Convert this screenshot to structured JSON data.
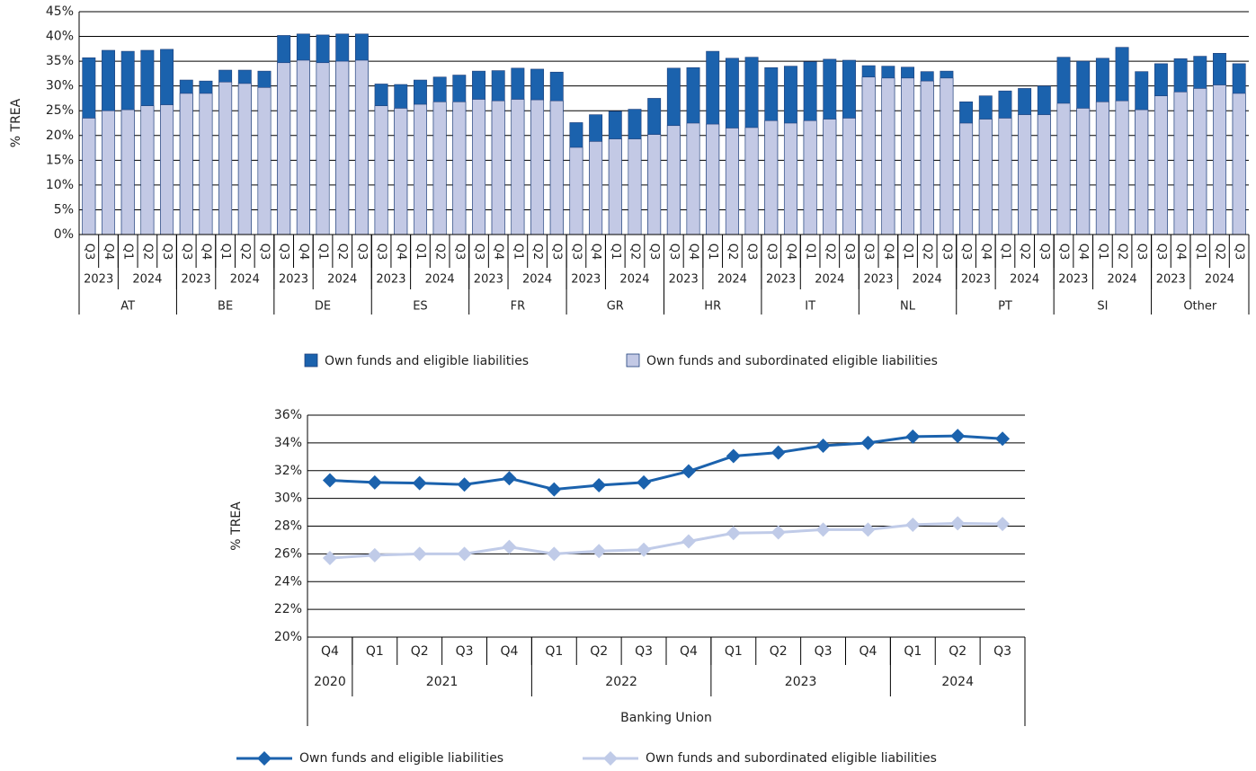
{
  "chart_data": [
    {
      "type": "bar",
      "overlap": true,
      "ylabel": "% TREA",
      "groups": [
        {
          "name": "AT",
          "years": [
            {
              "year": "2023",
              "quarters": [
                "Q3",
                "Q4"
              ]
            },
            {
              "year": "2024",
              "quarters": [
                "Q1",
                "Q2",
                "Q3"
              ]
            }
          ]
        },
        {
          "name": "BE",
          "years": [
            {
              "year": "2023",
              "quarters": [
                "Q3",
                "Q4"
              ]
            },
            {
              "year": "2024",
              "quarters": [
                "Q1",
                "Q2",
                "Q3"
              ]
            }
          ]
        },
        {
          "name": "DE",
          "years": [
            {
              "year": "2023",
              "quarters": [
                "Q3",
                "Q4"
              ]
            },
            {
              "year": "2024",
              "quarters": [
                "Q1",
                "Q2",
                "Q3"
              ]
            }
          ]
        },
        {
          "name": "ES",
          "years": [
            {
              "year": "2023",
              "quarters": [
                "Q3",
                "Q4"
              ]
            },
            {
              "year": "2024",
              "quarters": [
                "Q1",
                "Q2",
                "Q3"
              ]
            }
          ]
        },
        {
          "name": "FR",
          "years": [
            {
              "year": "2023",
              "quarters": [
                "Q3",
                "Q4"
              ]
            },
            {
              "year": "2024",
              "quarters": [
                "Q1",
                "Q2",
                "Q3"
              ]
            }
          ]
        },
        {
          "name": "GR",
          "years": [
            {
              "year": "2023",
              "quarters": [
                "Q3",
                "Q4"
              ]
            },
            {
              "year": "2024",
              "quarters": [
                "Q1",
                "Q2",
                "Q3"
              ]
            }
          ]
        },
        {
          "name": "HR",
          "years": [
            {
              "year": "2023",
              "quarters": [
                "Q3",
                "Q4"
              ]
            },
            {
              "year": "2024",
              "quarters": [
                "Q1",
                "Q2",
                "Q3"
              ]
            }
          ]
        },
        {
          "name": "IT",
          "years": [
            {
              "year": "2023",
              "quarters": [
                "Q3",
                "Q4"
              ]
            },
            {
              "year": "2024",
              "quarters": [
                "Q1",
                "Q2",
                "Q3"
              ]
            }
          ]
        },
        {
          "name": "NL",
          "years": [
            {
              "year": "2023",
              "quarters": [
                "Q3",
                "Q4"
              ]
            },
            {
              "year": "2024",
              "quarters": [
                "Q1",
                "Q2",
                "Q3"
              ]
            }
          ]
        },
        {
          "name": "PT",
          "years": [
            {
              "year": "2023",
              "quarters": [
                "Q3",
                "Q4"
              ]
            },
            {
              "year": "2024",
              "quarters": [
                "Q1",
                "Q2",
                "Q3"
              ]
            }
          ]
        },
        {
          "name": "SI",
          "years": [
            {
              "year": "2023",
              "quarters": [
                "Q3",
                "Q4"
              ]
            },
            {
              "year": "2024",
              "quarters": [
                "Q1",
                "Q2",
                "Q3"
              ]
            }
          ]
        },
        {
          "name": "Other",
          "years": [
            {
              "year": "2023",
              "quarters": [
                "Q3",
                "Q4"
              ]
            },
            {
              "year": "2024",
              "quarters": [
                "Q1",
                "Q2",
                "Q3"
              ]
            }
          ]
        }
      ],
      "series": [
        {
          "name": "Own funds and eligible liabilities",
          "color": "#1b62ad",
          "values": [
            35.7,
            37.2,
            37.0,
            37.2,
            37.4,
            31.2,
            31.0,
            33.2,
            33.2,
            33.0,
            40.2,
            40.5,
            40.3,
            40.5,
            40.5,
            30.4,
            30.3,
            31.2,
            31.8,
            32.2,
            33.0,
            33.1,
            33.6,
            33.4,
            32.8,
            22.6,
            24.2,
            24.9,
            25.3,
            27.5,
            33.6,
            33.7,
            37.0,
            35.6,
            35.8,
            33.7,
            34.0,
            34.9,
            35.4,
            35.2,
            34.1,
            34.0,
            33.8,
            32.9,
            33.0,
            26.8,
            28.0,
            29.0,
            29.5,
            30.0,
            35.8,
            35.0,
            35.6,
            37.8,
            32.9,
            34.5,
            35.5,
            36.0,
            36.6,
            34.5
          ]
        },
        {
          "name": "Own funds and subordinated eligible liabilities",
          "color": "#c3c9e5",
          "values": [
            23.5,
            25.0,
            25.2,
            26.0,
            26.2,
            28.5,
            28.5,
            30.8,
            30.5,
            29.7,
            34.7,
            35.2,
            34.7,
            35.0,
            35.2,
            26.0,
            25.5,
            26.3,
            26.8,
            26.8,
            27.3,
            27.0,
            27.3,
            27.2,
            27.0,
            17.6,
            18.8,
            19.3,
            19.3,
            20.2,
            22.0,
            22.5,
            22.3,
            21.5,
            21.6,
            23.0,
            22.5,
            23.0,
            23.3,
            23.5,
            31.8,
            31.6,
            31.6,
            31.0,
            31.6,
            22.5,
            23.3,
            23.5,
            24.2,
            24.2,
            26.5,
            25.5,
            26.8,
            27.0,
            25.2,
            28.0,
            28.8,
            29.5,
            30.2,
            28.5
          ]
        }
      ],
      "ylim": [
        0,
        45
      ],
      "yticks": [
        {
          "value": 0,
          "label": "0%"
        },
        {
          "value": 5,
          "label": "5%"
        },
        {
          "value": 10,
          "label": "10%"
        },
        {
          "value": 15,
          "label": "15%"
        },
        {
          "value": 20,
          "label": "20%"
        },
        {
          "value": 25,
          "label": "25%"
        },
        {
          "value": 30,
          "label": "30%"
        },
        {
          "value": 35,
          "label": "35%"
        },
        {
          "value": 40,
          "label": "40%"
        },
        {
          "value": 45,
          "label": "45%"
        }
      ],
      "grid": true
    },
    {
      "type": "line",
      "ylabel": "% TREA",
      "group": "Banking Union",
      "years": [
        {
          "year": "2020",
          "quarters": [
            "Q4"
          ]
        },
        {
          "year": "2021",
          "quarters": [
            "Q1",
            "Q2",
            "Q3",
            "Q4"
          ]
        },
        {
          "year": "2022",
          "quarters": [
            "Q1",
            "Q2",
            "Q3",
            "Q4"
          ]
        },
        {
          "year": "2023",
          "quarters": [
            "Q1",
            "Q2",
            "Q3",
            "Q4"
          ]
        },
        {
          "year": "2024",
          "quarters": [
            "Q1",
            "Q2",
            "Q3"
          ]
        }
      ],
      "series": [
        {
          "name": "Own funds and eligible liabilities",
          "color": "#1b62ad",
          "values": [
            31.3,
            31.15,
            31.1,
            31.0,
            31.45,
            30.65,
            30.95,
            31.15,
            31.95,
            33.05,
            33.3,
            33.8,
            34.0,
            34.45,
            34.5,
            34.3
          ]
        },
        {
          "name": "Own funds and subordinated eligible liabilities",
          "color": "#c0cbe8",
          "values": [
            25.7,
            25.9,
            26.0,
            26.0,
            26.5,
            26.0,
            26.2,
            26.3,
            26.9,
            27.5,
            27.55,
            27.75,
            27.75,
            28.1,
            28.2,
            28.15
          ]
        }
      ],
      "ylim": [
        20,
        36
      ],
      "yticks": [
        {
          "value": 20,
          "label": "20%"
        },
        {
          "value": 22,
          "label": "22%"
        },
        {
          "value": 24,
          "label": "24%"
        },
        {
          "value": 26,
          "label": "26%"
        },
        {
          "value": 28,
          "label": "28%"
        },
        {
          "value": 30,
          "label": "30%"
        },
        {
          "value": 32,
          "label": "32%"
        },
        {
          "value": 34,
          "label": "34%"
        },
        {
          "value": 36,
          "label": "36%"
        }
      ],
      "grid": true
    }
  ]
}
